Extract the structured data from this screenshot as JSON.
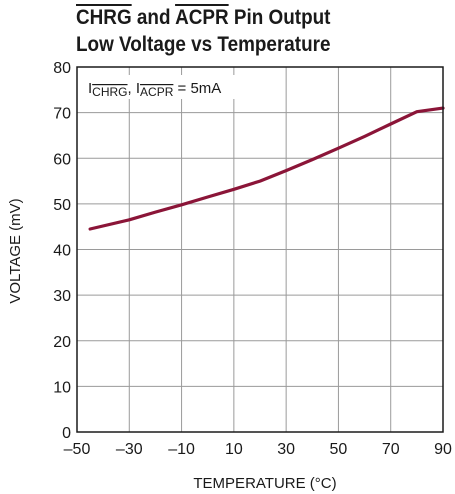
{
  "chart_data": {
    "type": "line",
    "title": {
      "line1": {
        "part1": "CHRG",
        "part2": " and ",
        "part3": "ACPR",
        "part4": " Pin Output"
      },
      "line2": "Low Voltage vs Temperature"
    },
    "annotation": {
      "prefix": "I",
      "sub1": "CHRG",
      "mid": ", I",
      "sub2": "ACPR",
      "suffix": " = 5mA"
    },
    "xlabel": "TEMPERATURE (°C)",
    "ylabel": "VOLTAGE (mV)",
    "xlim": [
      -50,
      90
    ],
    "ylim": [
      0,
      80
    ],
    "x_ticks": [
      -50,
      -30,
      -10,
      10,
      30,
      50,
      70,
      90
    ],
    "x_tick_labels": [
      "–50",
      "–30",
      "–10",
      "10",
      "30",
      "50",
      "70",
      "90"
    ],
    "y_ticks": [
      0,
      10,
      20,
      30,
      40,
      50,
      60,
      70,
      80
    ],
    "y_tick_labels": [
      "0",
      "10",
      "20",
      "30",
      "40",
      "50",
      "60",
      "70",
      "80"
    ],
    "grid": true,
    "series_color": "#8b1538",
    "grid_color": "#9a9a9a",
    "series": [
      {
        "x": [
          -45,
          -30,
          -20,
          -10,
          0,
          10,
          20,
          30,
          40,
          50,
          60,
          70,
          80,
          90
        ],
        "values": [
          44.5,
          46.5,
          48.2,
          49.8,
          51.5,
          53.2,
          55.0,
          57.3,
          59.7,
          62.2,
          64.8,
          67.5,
          70.2,
          71.0
        ]
      }
    ]
  }
}
